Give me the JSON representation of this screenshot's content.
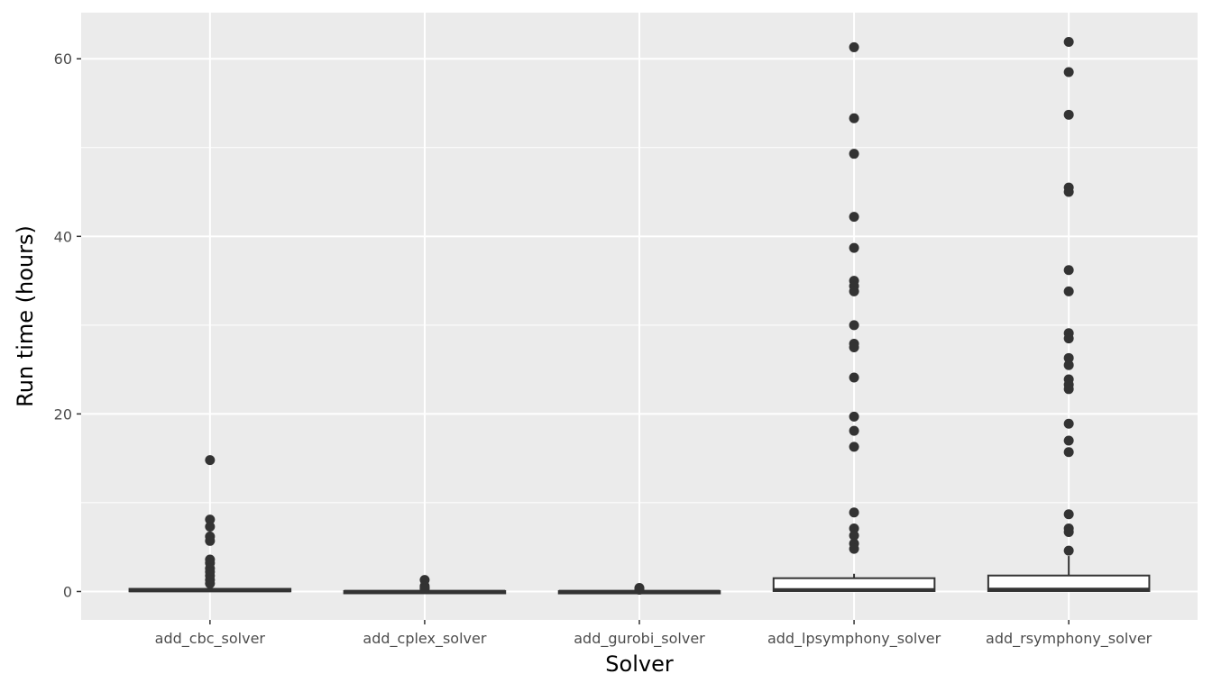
{
  "chart_data": {
    "type": "boxplot",
    "xlabel": "Solver",
    "ylabel": "Run time (hours)",
    "ylim": [
      -3.2,
      65.2
    ],
    "yticks": [
      0,
      20,
      40,
      60
    ],
    "y_minor_ticks": [
      10,
      30,
      50
    ],
    "grid": true,
    "legend": "none",
    "colors": {
      "panel": "#ebebeb",
      "grid": "#ffffff",
      "box_fill": "#ffffff",
      "box_stroke": "#333333",
      "outlier": "#333333",
      "tick_text": "#4d4d4d",
      "tick_mark": "#333333",
      "title_text": "#000000"
    },
    "categories": [
      "add_cbc_solver",
      "add_cplex_solver",
      "add_gurobi_solver",
      "add_lpsymphony_solver",
      "add_rsymphony_solver"
    ],
    "boxes": [
      {
        "category": "add_cbc_solver",
        "min": 0,
        "q1": 0.02,
        "median": 0.1,
        "q3": 0.3,
        "max": 0.7,
        "outliers": [
          14.8,
          8.1,
          7.3,
          6.2,
          5.7,
          3.6,
          3.2,
          2.6,
          2.2,
          1.8,
          1.3,
          0.9
        ]
      },
      {
        "category": "add_cplex_solver",
        "min": 0,
        "q1": 0.0,
        "median": 0.01,
        "q3": 0.05,
        "max": 0.15,
        "outliers": [
          1.3,
          0.6,
          0.4,
          0.3
        ]
      },
      {
        "category": "add_gurobi_solver",
        "min": 0,
        "q1": 0.0,
        "median": 0.01,
        "q3": 0.04,
        "max": 0.1,
        "outliers": [
          0.4,
          0.3,
          0.2
        ]
      },
      {
        "category": "add_lpsymphony_solver",
        "min": 0,
        "q1": 0.05,
        "median": 0.2,
        "q3": 1.5,
        "max": 2.0,
        "outliers": [
          61.3,
          53.3,
          49.3,
          42.2,
          38.7,
          35.0,
          34.4,
          33.8,
          30.0,
          27.9,
          27.5,
          24.1,
          19.7,
          18.1,
          16.3,
          8.9,
          7.1,
          6.3,
          5.4,
          4.8
        ]
      },
      {
        "category": "add_rsymphony_solver",
        "min": 0,
        "q1": 0.05,
        "median": 0.25,
        "q3": 1.8,
        "max": 4.0,
        "outliers": [
          61.9,
          58.5,
          53.7,
          45.5,
          45.0,
          36.2,
          33.8,
          29.1,
          28.5,
          26.3,
          25.5,
          23.9,
          23.3,
          22.8,
          18.9,
          17.0,
          15.7,
          8.7,
          7.1,
          6.7,
          4.6
        ]
      }
    ]
  }
}
